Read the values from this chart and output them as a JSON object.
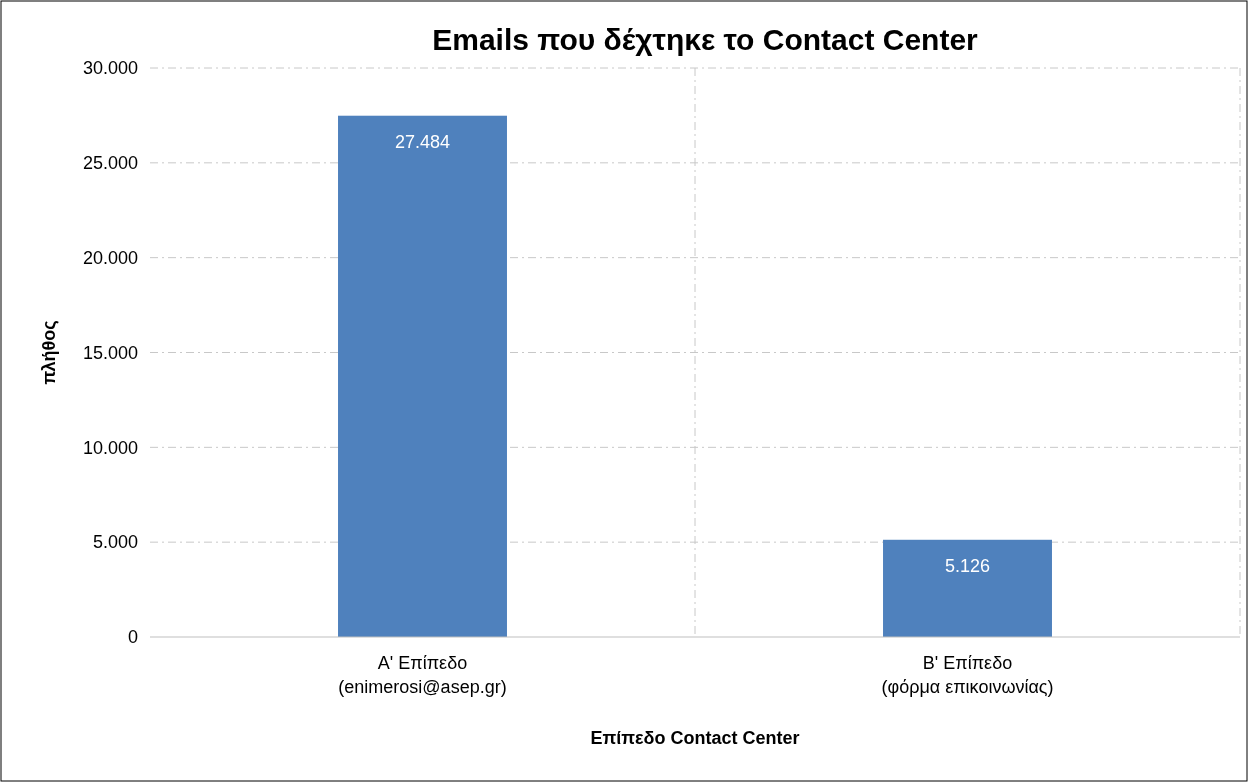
{
  "chart_data": {
    "type": "bar",
    "title": "Emails που δέχτηκε το Contact Center",
    "xlabel": "Επίπεδο Contact Center",
    "ylabel": "πλήθος",
    "categories": [
      "Α' Επίπεδο\n(enimerosi@asep.gr)",
      "Β' Επίπεδο\n(φόρμα επικοινωνίας)"
    ],
    "values": [
      27484,
      5126
    ],
    "color": "#4f81bd",
    "value_labels": [
      "27.484",
      "5.126"
    ],
    "ylim": [
      0,
      30000
    ],
    "yticks": [
      {
        "value": 0,
        "label": "0"
      },
      {
        "value": 5000,
        "label": "5.000"
      },
      {
        "value": 10000,
        "label": "10.000"
      },
      {
        "value": 15000,
        "label": "15.000"
      },
      {
        "value": 20000,
        "label": "20.000"
      },
      {
        "value": 25000,
        "label": "25.000"
      },
      {
        "value": 30000,
        "label": "30.000"
      }
    ],
    "grid": true
  }
}
